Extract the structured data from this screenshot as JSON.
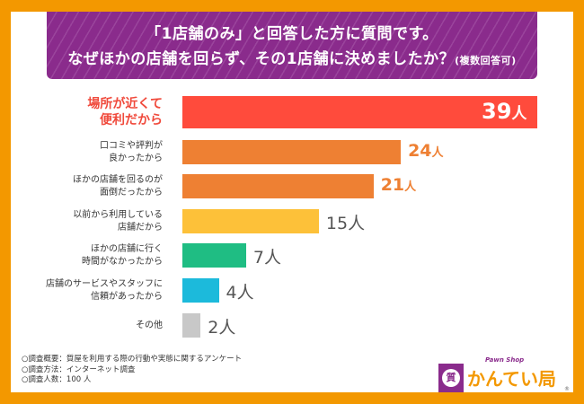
{
  "header": {
    "line1": "「1店舗のみ」と回答した方に質問です。",
    "line2": "なぜほかの店舗を回らず、その1店舗に決めましたか？",
    "line2_note": "(複数回答可)"
  },
  "chart_data": {
    "type": "bar",
    "orientation": "horizontal",
    "title": "「1店舗のみ」と回答した方に質問です。なぜほかの店舗を回らず、その1店舗に決めましたか？(複数回答可)",
    "unit": "人",
    "categories": [
      "場所が近くて\n便利だから",
      "口コミや評判が\n良かったから",
      "ほかの店舗を回るのが\n面倒だったから",
      "以前から利用している\n店舗だから",
      "ほかの店舗に行く\n時間がなかったから",
      "店舗のサービスやスタッフに\n信頼があったから",
      "その他"
    ],
    "values": [
      39,
      24,
      21,
      15,
      7,
      4,
      2
    ],
    "value_labels": [
      "39",
      "24",
      "21",
      "15",
      "7",
      "4",
      "2"
    ],
    "colors": [
      "#ff4b3c",
      "#ee8033",
      "#ee8033",
      "#fdc139",
      "#1fbd83",
      "#1cbadb",
      "#c8c8c8"
    ],
    "label_colors": [
      "#ffffff",
      "#ee8033",
      "#ee8033",
      "#555555",
      "#555555",
      "#555555",
      "#555555"
    ],
    "xlim": [
      0,
      39
    ],
    "grid": false
  },
  "notes": [
    "○調査概要：質屋を利用する際の行動や実態に関するアンケート",
    "○調査方法：インターネット調査",
    "○調査人数：100 人"
  ],
  "logo": {
    "badge_char": "質",
    "sub": "Pawn Shop",
    "name": "かんてい局",
    "reg": "®"
  },
  "colors": {
    "frame": "#f39800",
    "banner": "#8a2b8c"
  }
}
